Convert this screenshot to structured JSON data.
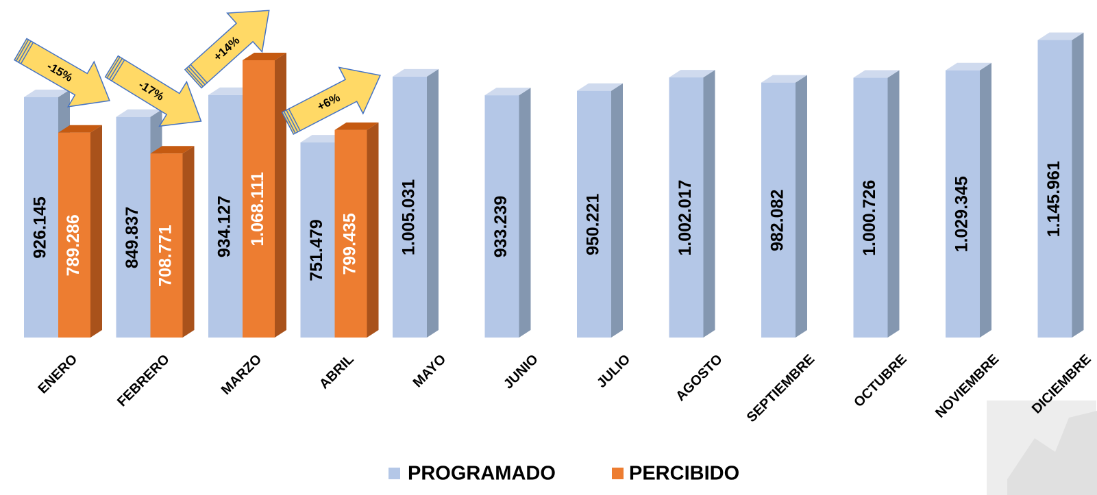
{
  "chart_data": {
    "type": "bar3d",
    "categories": [
      "ENERO",
      "FEBRERO",
      "MARZO",
      "ABRIL",
      "MAYO",
      "JUNIO",
      "JULIO",
      "AGOSTO",
      "SEPTIEMBRE",
      "OCTUBRE",
      "NOVIEMBRE",
      "DICIEMBRE"
    ],
    "series": [
      {
        "name": "PROGRAMADO",
        "color": "#b4c7e7",
        "side": "#8497b0",
        "top": "#cfdaee",
        "label_color": "#000000",
        "values": [
          926145,
          849837,
          934127,
          751479,
          1005031,
          933239,
          950221,
          1002017,
          982082,
          1000726,
          1029345,
          1145961
        ],
        "value_labels": [
          "926.145",
          "849.837",
          "934.127",
          "751.479",
          "1.005.031",
          "933.239",
          "950.221",
          "1.002.017",
          "982.082",
          "1.000.726",
          "1.029.345",
          "1.145.961"
        ]
      },
      {
        "name": "PERCIBIDO",
        "color": "#ed7d31",
        "side": "#a9521b",
        "top": "#c55a11",
        "label_color": "#ffffff",
        "values": [
          789286,
          708771,
          1068111,
          799435,
          null,
          null,
          null,
          null,
          null,
          null,
          null,
          null
        ],
        "value_labels": [
          "789.286",
          "708.771",
          "1.068.111",
          "799.435",
          null,
          null,
          null,
          null,
          null,
          null,
          null,
          null
        ]
      }
    ],
    "annotations": [
      "-15%",
      "-17%",
      "+14%",
      "+6%"
    ],
    "ylim": [
      0,
      1200000
    ]
  }
}
